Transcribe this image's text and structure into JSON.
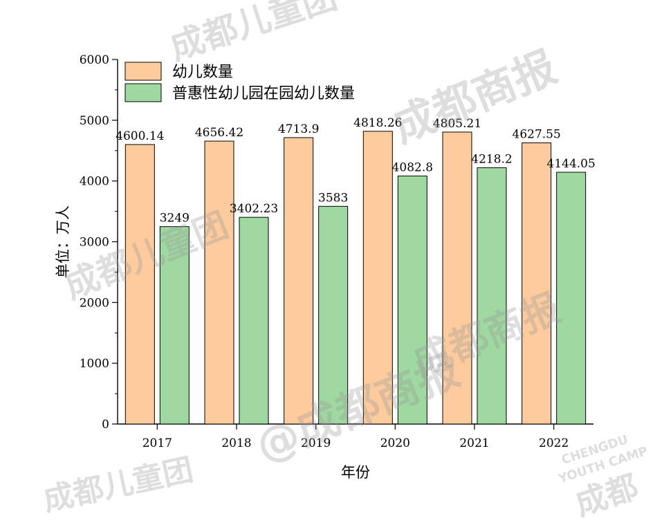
{
  "chart_data": {
    "type": "bar",
    "categories": [
      "2017",
      "2018",
      "2019",
      "2020",
      "2021",
      "2022"
    ],
    "series": [
      {
        "name": "幼儿数量",
        "values": [
          4600.14,
          4656.42,
          4713.9,
          4818.26,
          4805.21,
          4627.55
        ],
        "labels": [
          "4600.14",
          "4656.42",
          "4713.9",
          "4818.26",
          "4805.21",
          "4627.55"
        ],
        "color": "#FDCB9E"
      },
      {
        "name": "普惠性幼儿园在园幼儿数量",
        "values": [
          3249,
          3402.23,
          3583,
          4082.8,
          4218.2,
          4144.05
        ],
        "labels": [
          "3249",
          "3402.23",
          "3583",
          "4082.8",
          "4218.2",
          "4144.05"
        ],
        "color": "#9FD8A0"
      }
    ],
    "xlabel": "年份",
    "ylabel": "单位：万人",
    "ylim": [
      0,
      6000
    ],
    "yticks": [
      "0",
      "1000",
      "2000",
      "3000",
      "4000",
      "5000",
      "6000"
    ],
    "legend_position": "top-left",
    "grid": false
  },
  "watermarks": [
    "成都商报",
    "@成都商报",
    "成都儿童团",
    "CHENGDU",
    "YOUTH CAMP",
    "成都"
  ]
}
